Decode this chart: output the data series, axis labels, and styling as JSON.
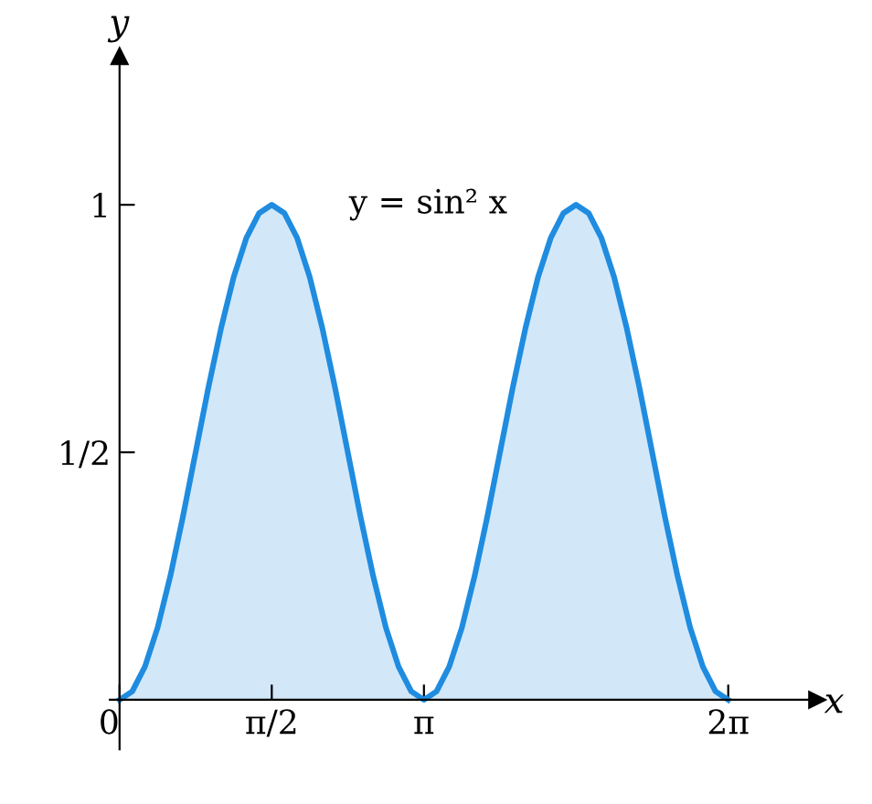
{
  "chart_data": {
    "type": "area",
    "xlabel": "x",
    "ylabel": "y",
    "x": [
      0,
      0.131,
      0.262,
      0.393,
      0.524,
      0.654,
      0.785,
      0.916,
      1.047,
      1.178,
      1.309,
      1.44,
      1.571,
      1.702,
      1.833,
      1.963,
      2.094,
      2.225,
      2.356,
      2.487,
      2.618,
      2.749,
      2.88,
      3.011,
      3.142,
      3.272,
      3.403,
      3.534,
      3.665,
      3.796,
      3.927,
      4.058,
      4.189,
      4.32,
      4.451,
      4.581,
      4.712,
      4.843,
      4.974,
      5.105,
      5.236,
      5.367,
      5.498,
      5.629,
      5.76,
      5.89,
      6.021,
      6.152,
      6.283
    ],
    "series": [
      {
        "color": "#1f8ce0",
        "values": [
          0,
          0.017,
          0.067,
          0.146,
          0.25,
          0.37,
          0.5,
          0.63,
          0.75,
          0.854,
          0.933,
          0.983,
          1,
          0.983,
          0.933,
          0.854,
          0.75,
          0.63,
          0.5,
          0.37,
          0.25,
          0.146,
          0.067,
          0.017,
          0,
          0.017,
          0.067,
          0.146,
          0.25,
          0.37,
          0.5,
          0.63,
          0.75,
          0.854,
          0.933,
          0.983,
          1,
          0.983,
          0.933,
          0.854,
          0.75,
          0.63,
          0.5,
          0.37,
          0.25,
          0.146,
          0.067,
          0.017,
          0
        ]
      }
    ],
    "xlim": [
      -0.1,
      7.2
    ],
    "ylim": [
      -0.1,
      1.3
    ],
    "xticks": [
      {
        "value": 0,
        "label": "0"
      },
      {
        "value": 1.571,
        "label": "π/2"
      },
      {
        "value": 3.142,
        "label": "π"
      },
      {
        "value": 6.283,
        "label": "2π"
      }
    ],
    "yticks": [
      {
        "value": 0.5,
        "label": "1/2"
      },
      1
    ],
    "annotations": [
      "y = sin² x"
    ],
    "grid": false,
    "legend": false
  }
}
